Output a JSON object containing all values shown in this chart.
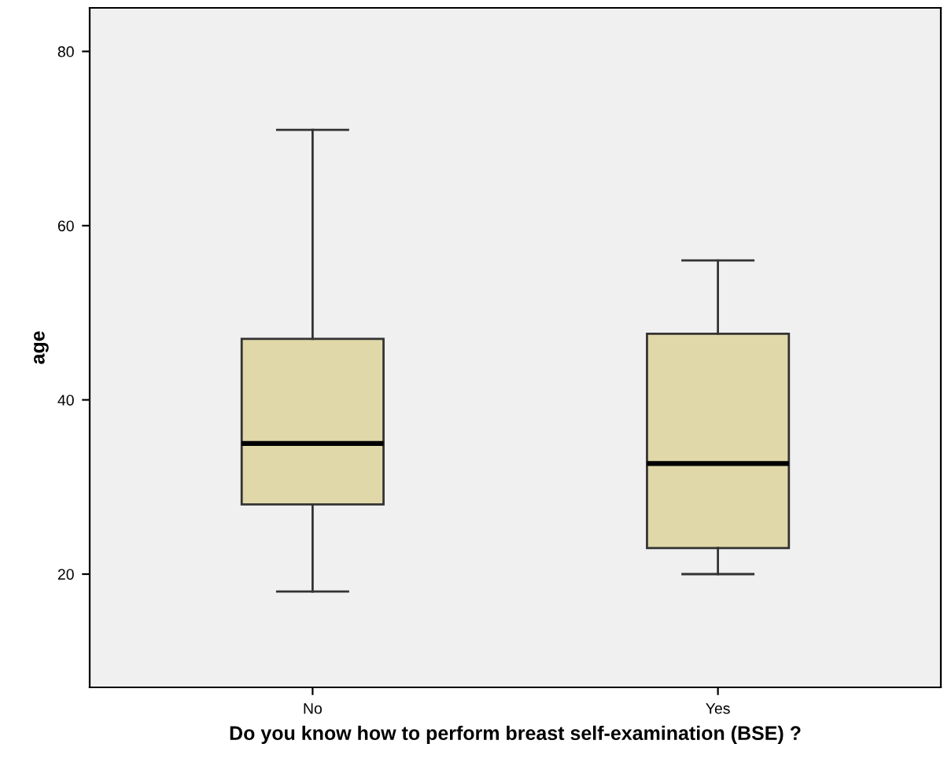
{
  "chart_data": {
    "type": "box",
    "xlabel": "Do you know how to perform breast self-examination (BSE) ?",
    "ylabel": "age",
    "categories": [
      "No",
      "Yes"
    ],
    "boxes": [
      {
        "low": 18,
        "q1": 28,
        "median": 35,
        "q3": 47,
        "high": 71
      },
      {
        "low": 20,
        "q1": 23,
        "median": 32.7,
        "q3": 47.6,
        "high": 56
      }
    ],
    "color": "#e0d8a8",
    "ylim": [
      7,
      85
    ],
    "yticks": [
      20,
      40,
      60,
      80
    ],
    "grid": false
  }
}
